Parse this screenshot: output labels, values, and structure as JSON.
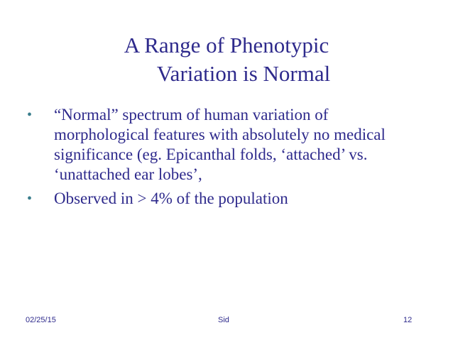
{
  "title": [
    "A Range of Phenotypic",
    "Variation is Normal"
  ],
  "bullets": [
    "“Normal” spectrum of human variation of morphological features with absolutely no medical significance (eg. Epicanthal folds, ‘attached’ vs. ‘unattached ear lobes’,",
    "Observed in > 4% of the population"
  ],
  "footer": {
    "date": "02/25/15",
    "author": "Sid",
    "page": "12"
  }
}
